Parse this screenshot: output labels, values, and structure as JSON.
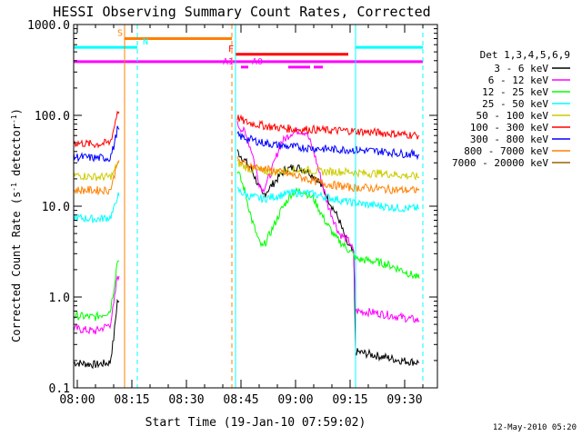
{
  "chart_data": {
    "type": "line",
    "title": "HESSI Observing Summary Count Rates, Corrected",
    "xlabel": "Start Time (19-Jan-10 07:59:02)",
    "ylabel_main": "Corrected Count Rate (s",
    "ylabel_sup1": "-1",
    "ylabel_mid": " detector",
    "ylabel_sup2": "-1",
    "ylabel_end": ")",
    "yscale": "log",
    "ylim": [
      0.1,
      1000
    ],
    "xlim_minutes": [
      0,
      100
    ],
    "x_ticks": [
      {
        "label": "08:00",
        "min": 1
      },
      {
        "label": "08:15",
        "min": 16
      },
      {
        "label": "08:30",
        "min": 31
      },
      {
        "label": "08:45",
        "min": 46
      },
      {
        "label": "09:00",
        "min": 61
      },
      {
        "label": "09:15",
        "min": 76
      },
      {
        "label": "09:30",
        "min": 91
      }
    ],
    "y_ticks": [
      {
        "label": "0.1",
        "value": 0.1
      },
      {
        "label": "1.0",
        "value": 1
      },
      {
        "label": "10.0",
        "value": 10
      },
      {
        "label": "100.0",
        "value": 100
      },
      {
        "label": "1000.0",
        "value": 1000
      }
    ],
    "legend_header": "Det 1,3,4,5,6,9",
    "legend_placement": "right",
    "series": [
      {
        "name": "3 - 6 keV",
        "color": "#000000",
        "points": [
          [
            0,
            0.19
          ],
          [
            6,
            0.18
          ],
          [
            10,
            0.19
          ],
          [
            11,
            0.35
          ],
          [
            12,
            0.9
          ],
          [
            12.5,
            0.9
          ]
        ]
      },
      {
        "name": "3 - 6 keV",
        "color": "#000000",
        "points": [
          [
            45,
            40
          ],
          [
            47,
            32
          ],
          [
            49,
            25
          ],
          [
            52,
            13
          ],
          [
            55,
            18
          ],
          [
            58,
            25
          ],
          [
            61,
            27
          ],
          [
            64,
            25
          ],
          [
            67,
            20
          ],
          [
            70,
            12
          ],
          [
            73,
            7
          ],
          [
            75,
            4
          ],
          [
            77,
            3
          ],
          [
            77.5,
            0.25
          ],
          [
            80,
            0.24
          ],
          [
            85,
            0.22
          ],
          [
            90,
            0.2
          ],
          [
            95,
            0.19
          ]
        ]
      },
      {
        "name": "6 - 12 keV",
        "color": "#ff00ff",
        "points": [
          [
            0,
            0.45
          ],
          [
            6,
            0.42
          ],
          [
            10,
            0.5
          ],
          [
            11,
            0.8
          ],
          [
            12,
            1.7
          ],
          [
            12.5,
            1.7
          ]
        ]
      },
      {
        "name": "6 - 12 keV",
        "color": "#ff00ff",
        "points": [
          [
            45,
            80
          ],
          [
            47,
            65
          ],
          [
            49,
            40
          ],
          [
            51,
            18
          ],
          [
            52,
            15
          ],
          [
            54,
            22
          ],
          [
            57,
            50
          ],
          [
            60,
            65
          ],
          [
            62,
            68
          ],
          [
            64,
            65
          ],
          [
            66,
            40
          ],
          [
            68,
            20
          ],
          [
            70,
            10
          ],
          [
            73,
            5
          ],
          [
            76,
            4
          ],
          [
            77,
            3
          ],
          [
            77.5,
            0.7
          ],
          [
            82,
            0.68
          ],
          [
            88,
            0.62
          ],
          [
            92,
            0.58
          ],
          [
            95,
            0.55
          ]
        ]
      },
      {
        "name": "12 - 25 keV",
        "color": "#00ff00",
        "points": [
          [
            0,
            0.62
          ],
          [
            6,
            0.6
          ],
          [
            10,
            0.7
          ],
          [
            11,
            1.2
          ],
          [
            12,
            2.5
          ],
          [
            12.5,
            2.5
          ]
        ]
      },
      {
        "name": "12 - 25 keV",
        "color": "#00ff00",
        "points": [
          [
            45,
            25
          ],
          [
            47,
            15
          ],
          [
            49,
            7
          ],
          [
            51,
            4
          ],
          [
            52,
            3.5
          ],
          [
            54,
            5
          ],
          [
            57,
            9
          ],
          [
            60,
            14
          ],
          [
            63,
            15
          ],
          [
            66,
            12
          ],
          [
            69,
            7
          ],
          [
            72,
            4.5
          ],
          [
            75,
            3.5
          ],
          [
            78,
            2.6
          ],
          [
            82,
            2.5
          ],
          [
            86,
            2.3
          ],
          [
            90,
            2
          ],
          [
            95,
            1.6
          ]
        ]
      },
      {
        "name": "25 - 50 keV",
        "color": "#00ffff",
        "points": [
          [
            0,
            7.5
          ],
          [
            6,
            7.2
          ],
          [
            10,
            7.5
          ],
          [
            11,
            9
          ],
          [
            12,
            13
          ],
          [
            12.5,
            13
          ]
        ]
      },
      {
        "name": "25 - 50 keV",
        "color": "#00ffff",
        "points": [
          [
            45,
            15
          ],
          [
            48,
            13
          ],
          [
            52,
            12
          ],
          [
            56,
            13
          ],
          [
            60,
            14
          ],
          [
            64,
            14
          ],
          [
            68,
            13
          ],
          [
            72,
            12
          ],
          [
            76,
            11
          ],
          [
            80,
            10.5
          ],
          [
            85,
            10
          ],
          [
            90,
            9.5
          ],
          [
            95,
            9.5
          ]
        ]
      },
      {
        "name": "50 - 100 keV",
        "color": "#cccc00",
        "points": [
          [
            0,
            22
          ],
          [
            6,
            21
          ],
          [
            10,
            21
          ],
          [
            11,
            23
          ],
          [
            12,
            30
          ],
          [
            12.5,
            30
          ]
        ]
      },
      {
        "name": "50 - 100 keV",
        "color": "#cccc00",
        "points": [
          [
            45,
            30
          ],
          [
            48,
            26
          ],
          [
            52,
            24
          ],
          [
            56,
            24
          ],
          [
            60,
            25
          ],
          [
            64,
            25
          ],
          [
            68,
            24
          ],
          [
            72,
            24
          ],
          [
            76,
            24
          ],
          [
            80,
            23
          ],
          [
            85,
            23
          ],
          [
            90,
            22
          ],
          [
            95,
            21
          ]
        ]
      },
      {
        "name": "100 - 300 keV",
        "color": "#ff0000",
        "points": [
          [
            0,
            50
          ],
          [
            6,
            48
          ],
          [
            10,
            50
          ],
          [
            11,
            70
          ],
          [
            12,
            110
          ],
          [
            12.5,
            110
          ]
        ]
      },
      {
        "name": "100 - 300 keV",
        "color": "#ff0000",
        "points": [
          [
            45,
            95
          ],
          [
            47,
            85
          ],
          [
            50,
            80
          ],
          [
            54,
            75
          ],
          [
            58,
            72
          ],
          [
            62,
            70
          ],
          [
            66,
            70
          ],
          [
            70,
            68
          ],
          [
            75,
            68
          ],
          [
            80,
            66
          ],
          [
            85,
            64
          ],
          [
            90,
            62
          ],
          [
            95,
            60
          ]
        ]
      },
      {
        "name": "300 - 800 keV",
        "color": "#0000ff",
        "points": [
          [
            0,
            35
          ],
          [
            6,
            34
          ],
          [
            10,
            34
          ],
          [
            11,
            45
          ],
          [
            12,
            70
          ],
          [
            12.5,
            70
          ]
        ]
      },
      {
        "name": "300 - 800 keV",
        "color": "#0000ff",
        "points": [
          [
            45,
            60
          ],
          [
            48,
            55
          ],
          [
            52,
            50
          ],
          [
            56,
            47
          ],
          [
            60,
            45
          ],
          [
            64,
            44
          ],
          [
            68,
            43
          ],
          [
            72,
            42
          ],
          [
            76,
            42
          ],
          [
            80,
            41
          ],
          [
            85,
            40
          ],
          [
            90,
            38
          ],
          [
            95,
            37
          ]
        ]
      },
      {
        "name": "800 - 7000 keV",
        "color": "#ff8000",
        "points": [
          [
            0,
            15
          ],
          [
            6,
            15
          ],
          [
            10,
            15
          ],
          [
            11,
            20
          ],
          [
            12,
            32
          ],
          [
            12.5,
            32
          ]
        ]
      },
      {
        "name": "800 - 7000 keV",
        "color": "#ff8000",
        "points": [
          [
            45,
            32
          ],
          [
            48,
            28
          ],
          [
            52,
            26
          ],
          [
            56,
            24
          ],
          [
            60,
            22
          ],
          [
            64,
            20
          ],
          [
            68,
            18
          ],
          [
            72,
            17
          ],
          [
            76,
            16
          ],
          [
            80,
            16
          ],
          [
            85,
            15.5
          ],
          [
            90,
            15
          ],
          [
            95,
            15
          ]
        ]
      },
      {
        "name": "7000 - 20000 keV",
        "color": "#996600",
        "points": []
      }
    ],
    "vertical_lines": [
      {
        "x": 14.0,
        "color": "#ff8000",
        "style": "solid"
      },
      {
        "x": 17.5,
        "color": "#00ffff",
        "style": "dashed"
      },
      {
        "x": 43.5,
        "color": "#ff8000",
        "style": "dashed"
      },
      {
        "x": 44.5,
        "color": "#00ffff",
        "style": "solid"
      },
      {
        "x": 77.5,
        "color": "#00ffff",
        "style": "solid"
      },
      {
        "x": 96.0,
        "color": "#00ffff",
        "style": "dashed"
      }
    ],
    "flag_bars": [
      {
        "label": "S",
        "color": "#ff8000",
        "y": 700,
        "segments": [
          [
            14,
            43.5
          ]
        ],
        "label_x": 12
      },
      {
        "label": "N",
        "color": "#00ffff",
        "y": 560,
        "segments": [
          [
            0,
            17.5
          ],
          [
            77.5,
            96
          ]
        ],
        "label_x": 19
      },
      {
        "label": "F",
        "color": "#ff0000",
        "y": 470,
        "segments": [
          [
            44.5,
            75.5
          ]
        ],
        "label_x": 42.5
      },
      {
        "label": "",
        "color": "#ff00ff",
        "y": 390,
        "segments": [
          [
            0,
            96
          ]
        ],
        "label_x": null
      },
      {
        "label": "A0",
        "color": "#ff00ff",
        "y": 340,
        "segments": [
          [
            46,
            48
          ],
          [
            59,
            65
          ],
          [
            66,
            68.5
          ]
        ],
        "label_x": 49
      },
      {
        "label": "A1",
        "color": "#ff00ff",
        "y": 340,
        "segments": [],
        "label_x": 41
      }
    ],
    "footer_date": "12-May-2010 05:20"
  }
}
